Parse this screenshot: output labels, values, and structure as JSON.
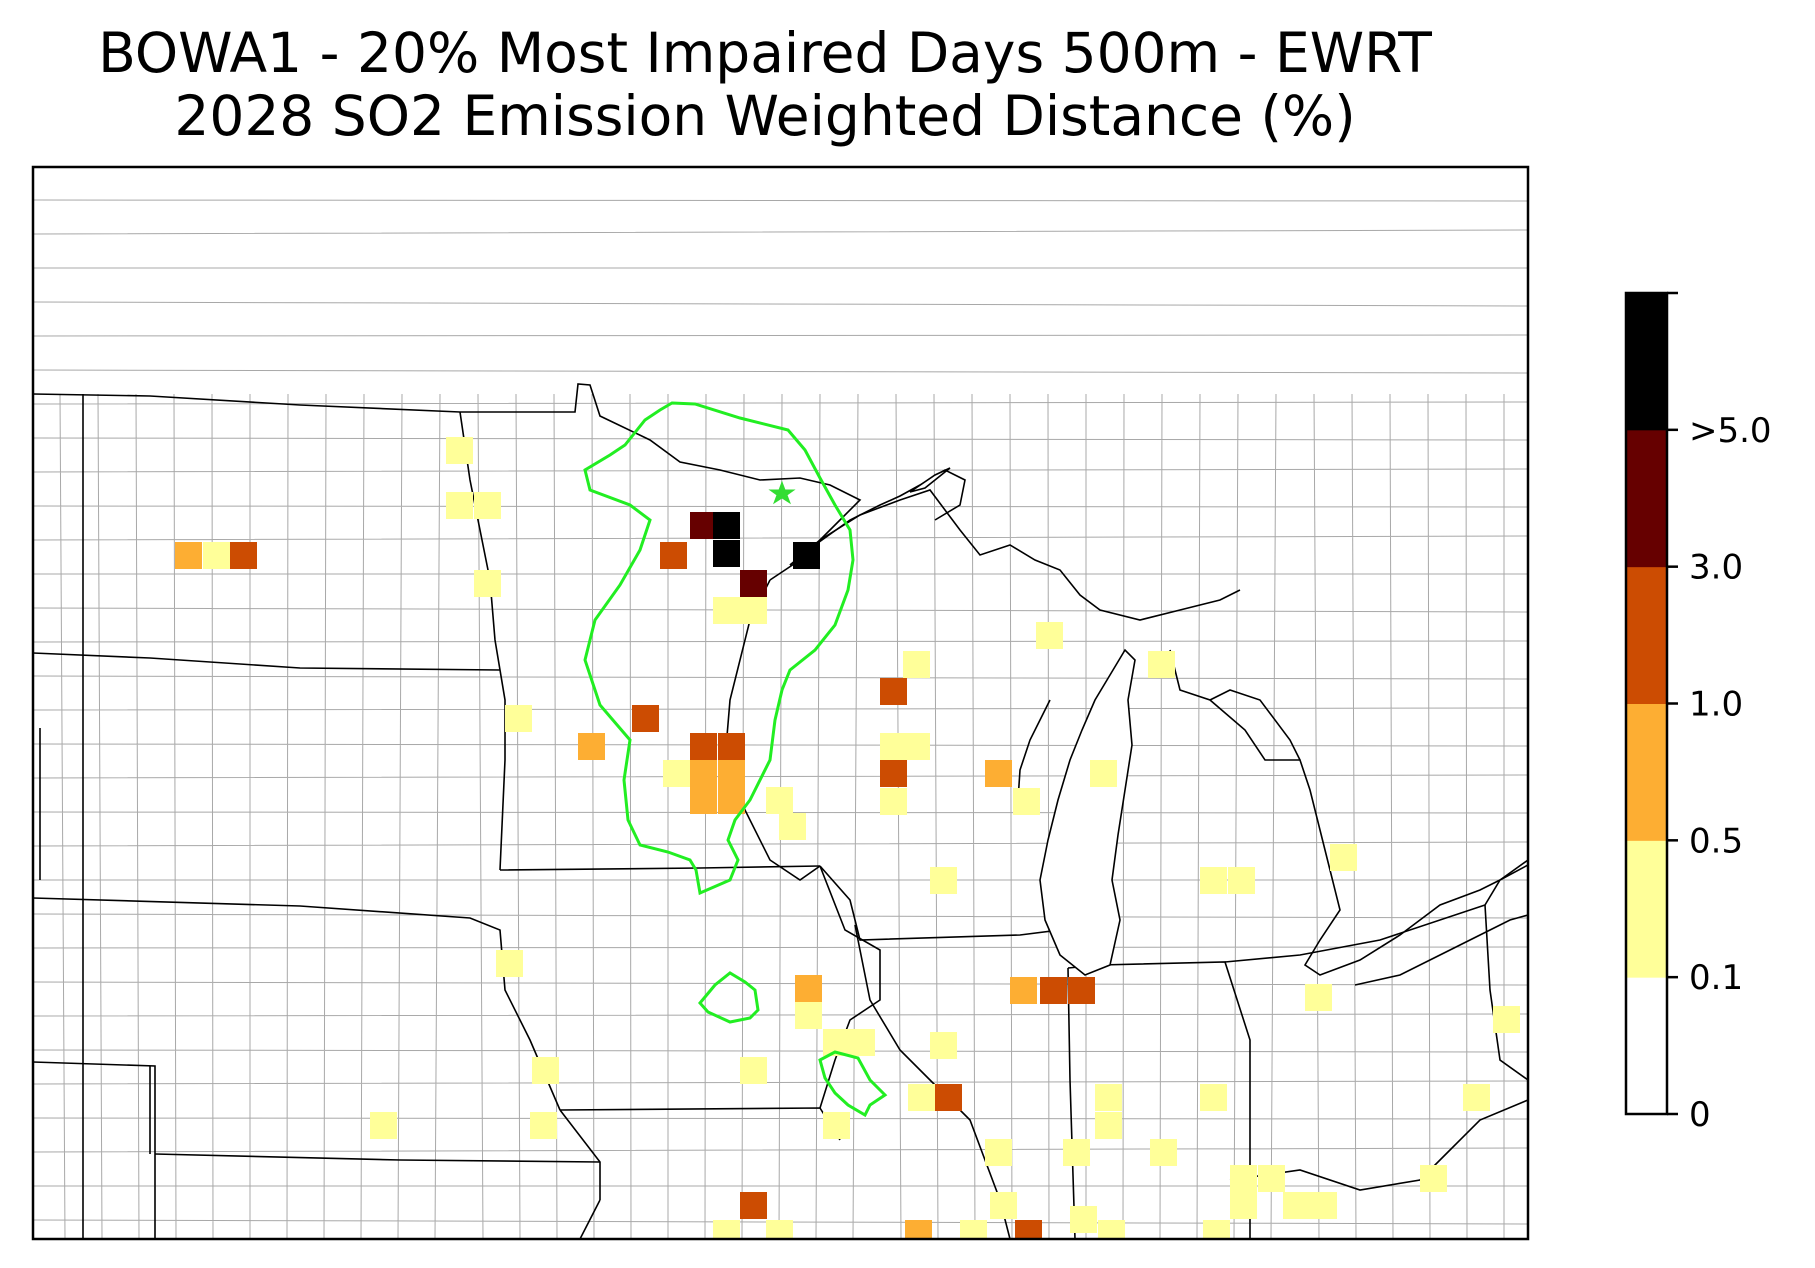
{
  "title": {
    "line1": "BOWA1 - 20% Most Impaired Days 500m - EWRT",
    "line2": "2028 SO2 Emission Weighted Distance (%)"
  },
  "colorbar": {
    "classes": [
      {
        "label": "0",
        "color": "#ffffff"
      },
      {
        "label": "0.1",
        "color": "#ffff99"
      },
      {
        "label": "0.5",
        "color": "#fdae33"
      },
      {
        "label": "1.0",
        "color": "#cc4c02"
      },
      {
        "label": "3.0",
        "color": "#660000"
      },
      {
        "label": ">5.0",
        "color": "#000000"
      }
    ],
    "tick_labels": [
      "0",
      "0.1",
      "0.5",
      "1.0",
      "3.0",
      ">5.0"
    ]
  },
  "map": {
    "marker": {
      "name": "star-marker",
      "color": "#33dd33"
    },
    "contour_color": "#22ee22"
  }
}
